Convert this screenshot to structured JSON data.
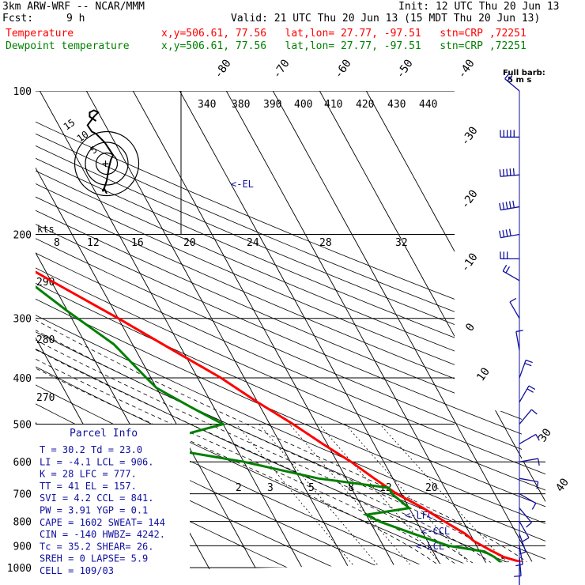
{
  "header": {
    "model": "3km ARW-WRF -- NCAR/MMM",
    "init": "Init: 12 UTC Thu 20 Jun 13",
    "fcst_label": "Fcst:",
    "fcst_value": "9 h",
    "valid": "Valid: 21 UTC Thu 20 Jun 13 (15 MDT Thu 20 Jun 13)",
    "temp_label": "Temperature",
    "temp_info": "x,y=506.61, 77.56   lat,lon= 27.77, -97.51   stn=CRP ,72251",
    "dew_label": "Dewpoint temperature",
    "dew_info": "x,y=506.61, 77.56   lat,lon= 27.77, -97.51   stn=CRP ,72251"
  },
  "wind_barb_legend": {
    "line1": "Full barb:",
    "line2": "5 m s"
  },
  "parcel_info": {
    "title": "Parcel Info",
    "rows": [
      "T   =   30.2  Td =  23.0",
      "LI  =   -4.1  LCL =  906.",
      "K   =     28  LFC =  777.",
      "TT  =     41  EL  =  157.",
      "SVI =    4.2  CCL =  841.",
      "PW  =   3.91  YGP =   0.1",
      "CAPE =  1602  SWEAT=  144",
      "CIN  =  -140  HWBZ= 4242.",
      "Tc  =   35.2  SHEAR=  26.",
      "SREH =     0  LAPSE=  5.9",
      "CELL = 109/03"
    ]
  },
  "hodograph": {
    "units_label": "kts",
    "ring_labels": [
      "5",
      "10",
      "15"
    ],
    "wind_points_kts": [
      [
        0,
        -14
      ],
      [
        -1,
        -12
      ],
      [
        -2,
        -13
      ],
      [
        -1,
        -11
      ],
      [
        0,
        -8
      ],
      [
        1,
        -2
      ],
      [
        2,
        2
      ],
      [
        3,
        4
      ],
      [
        1,
        7
      ],
      [
        -1,
        10
      ],
      [
        -3,
        12
      ],
      [
        -5,
        14
      ],
      [
        -7,
        15
      ],
      [
        -9,
        18
      ],
      [
        -6,
        22
      ],
      [
        -4,
        24
      ],
      [
        -6,
        25
      ],
      [
        -8,
        24
      ],
      [
        -8,
        22
      ],
      [
        -5,
        20
      ]
    ]
  },
  "chart_data": {
    "type": "line",
    "title": "Skew-T log-P sounding",
    "pressure_levels": [
      100,
      200,
      300,
      400,
      500,
      600,
      700,
      800,
      900,
      1000
    ],
    "isotherm_labels": [
      "-80",
      "-70",
      "-60",
      "-50",
      "-40",
      "-30",
      "-20",
      "-10",
      "0",
      "10",
      "20",
      "30",
      "40"
    ],
    "theta_labels": [
      "340",
      "380",
      "390",
      "400",
      "410",
      "420",
      "430",
      "440"
    ],
    "theta_left_labels": [
      "290",
      "280",
      "270"
    ],
    "mixing_ratio_labels": [
      "8",
      "12",
      "16",
      "20",
      "24",
      "28",
      "32"
    ],
    "mixing_ratio_low_labels": [
      "2",
      "3",
      "5",
      "8",
      "12",
      "20"
    ],
    "annotations": [
      "<-EL",
      "<-LFC",
      "<-CCL",
      "<-LCL"
    ],
    "series": [
      {
        "name": "Temperature",
        "color": "#ff0000",
        "points": [
          [
            1000,
            31
          ],
          [
            950,
            24.5
          ],
          [
            920,
            22.5
          ],
          [
            880,
            20
          ],
          [
            850,
            19
          ],
          [
            800,
            16
          ],
          [
            750,
            13
          ],
          [
            700,
            9
          ],
          [
            650,
            6
          ],
          [
            600,
            3
          ],
          [
            550,
            -1
          ],
          [
            500,
            -5
          ],
          [
            450,
            -10
          ],
          [
            400,
            -15
          ],
          [
            350,
            -22
          ],
          [
            300,
            -30
          ],
          [
            250,
            -40
          ],
          [
            200,
            -52
          ],
          [
            175,
            -57
          ],
          [
            150,
            -63
          ],
          [
            140,
            -62
          ],
          [
            125,
            -62
          ],
          [
            110,
            -58
          ],
          [
            100,
            -55
          ]
        ]
      },
      {
        "name": "Dewpoint temperature",
        "color": "#008000",
        "points": [
          [
            1000,
            24
          ],
          [
            950,
            22.5
          ],
          [
            925,
            21
          ],
          [
            900,
            14
          ],
          [
            850,
            8
          ],
          [
            800,
            2
          ],
          [
            775,
            0
          ],
          [
            750,
            10
          ],
          [
            700,
            8
          ],
          [
            680,
            8
          ],
          [
            650,
            -6
          ],
          [
            600,
            -20
          ],
          [
            575,
            -30
          ],
          [
            550,
            -38
          ],
          [
            500,
            -20
          ],
          [
            460,
            -25
          ],
          [
            420,
            -30
          ],
          [
            400,
            -31
          ],
          [
            340,
            -34
          ],
          [
            290,
            -40
          ],
          [
            250,
            -45
          ],
          [
            200,
            -52
          ],
          [
            160,
            -66
          ],
          [
            140,
            -72
          ],
          [
            120,
            -72
          ],
          [
            100,
            -70
          ]
        ]
      }
    ],
    "wind_barbs": [
      {
        "p": 100,
        "speed_ms": 10,
        "dir": 310
      },
      {
        "p": 125,
        "speed_ms": 25,
        "dir": 270
      },
      {
        "p": 150,
        "speed_ms": 25,
        "dir": 265
      },
      {
        "p": 175,
        "speed_ms": 25,
        "dir": 260
      },
      {
        "p": 200,
        "speed_ms": 20,
        "dir": 260
      },
      {
        "p": 225,
        "speed_ms": 15,
        "dir": 270
      },
      {
        "p": 250,
        "speed_ms": 10,
        "dir": 300
      },
      {
        "p": 300,
        "speed_ms": 5,
        "dir": 330
      },
      {
        "p": 350,
        "speed_ms": 5,
        "dir": 350
      },
      {
        "p": 400,
        "speed_ms": 10,
        "dir": 20
      },
      {
        "p": 450,
        "speed_ms": 10,
        "dir": 30
      },
      {
        "p": 500,
        "speed_ms": 5,
        "dir": 40
      },
      {
        "p": 550,
        "speed_ms": 5,
        "dir": 60
      },
      {
        "p": 600,
        "speed_ms": 5,
        "dir": 80
      },
      {
        "p": 650,
        "speed_ms": 5,
        "dir": 100
      },
      {
        "p": 700,
        "speed_ms": 5,
        "dir": 120
      },
      {
        "p": 750,
        "speed_ms": 5,
        "dir": 140
      },
      {
        "p": 800,
        "speed_ms": 5,
        "dir": 150
      },
      {
        "p": 850,
        "speed_ms": 5,
        "dir": 160
      },
      {
        "p": 900,
        "speed_ms": 5,
        "dir": 170
      },
      {
        "p": 950,
        "speed_ms": 5,
        "dir": 175
      },
      {
        "p": 1000,
        "speed_ms": 5,
        "dir": 180
      }
    ]
  },
  "colors": {
    "temp": "#ff0000",
    "dew": "#008000",
    "annotation": "#1010a0",
    "grid": "#000000"
  }
}
